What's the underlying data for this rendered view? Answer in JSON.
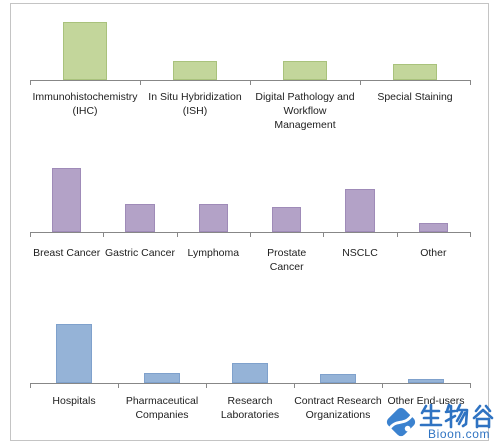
{
  "chart_data": [
    {
      "type": "bar",
      "categories": [
        "Immunohistochemistry\n(IHC)",
        "In Situ Hybridization\n(ISH)",
        "Digital Pathology and\nWorkflow\nManagement",
        "Special Staining"
      ],
      "values": [
        100,
        32,
        32,
        28
      ],
      "ylim": [
        0,
        100
      ],
      "grid": false,
      "legend": "none",
      "color": "#c3d69b",
      "edge_color": "#a9c27c",
      "axis_color": "#878787"
    },
    {
      "type": "bar",
      "categories": [
        "Breast Cancer",
        "Gastric Cancer",
        "Lymphoma",
        "Prostate\nCancer",
        "NSCLC",
        "Other"
      ],
      "values": [
        100,
        44,
        44,
        39,
        67,
        14
      ],
      "ylim": [
        0,
        100
      ],
      "grid": false,
      "legend": "none",
      "color": "#b3a2c7",
      "edge_color": "#9f8bb8",
      "axis_color": "#878787"
    },
    {
      "type": "bar",
      "categories": [
        "Hospitals",
        "Pharmaceutical\nCompanies",
        "Research\nLaboratories",
        "Contract Research\nOrganizations",
        "Other End-users"
      ],
      "values": [
        100,
        17,
        34,
        15,
        7
      ],
      "ylim": [
        0,
        100
      ],
      "grid": false,
      "legend": "none",
      "color": "#95b3d7",
      "edge_color": "#7fa1cc",
      "axis_color": "#878787"
    }
  ],
  "watermark": {
    "text": "生物谷",
    "subtext": "Bioon.com",
    "icon": "bioon-logo-icon",
    "color": "#2f73c2"
  }
}
